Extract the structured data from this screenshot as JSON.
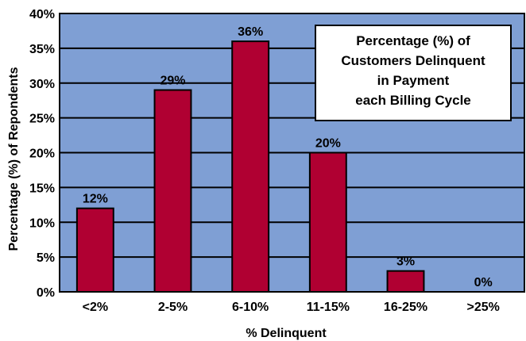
{
  "chart_data": {
    "type": "bar",
    "categories": [
      "<2%",
      "2-5%",
      "6-10%",
      "11-15%",
      "16-25%",
      ">25%"
    ],
    "values": [
      12,
      29,
      36,
      20,
      3,
      0
    ],
    "data_labels": [
      "12%",
      "29%",
      "36%",
      "20%",
      "3%",
      "0%"
    ],
    "title_lines": [
      "Percentage (%) of",
      "Customers Delinquent",
      "in Payment",
      "each Billing Cycle"
    ],
    "xlabel": "% Delinquent",
    "ylabel": "Percentage (%) of Repondents",
    "ylim": [
      0,
      40
    ],
    "yticks": [
      0,
      5,
      10,
      15,
      20,
      25,
      30,
      35,
      40
    ],
    "ytick_labels": [
      "0%",
      "5%",
      "10%",
      "15%",
      "20%",
      "25%",
      "30%",
      "35%",
      "40%"
    ],
    "grid": true,
    "title_placement": "top-right",
    "colors": {
      "plot_background": "#7f9fd4",
      "bar_fill": "#b00032",
      "gridline": "#000000"
    }
  }
}
